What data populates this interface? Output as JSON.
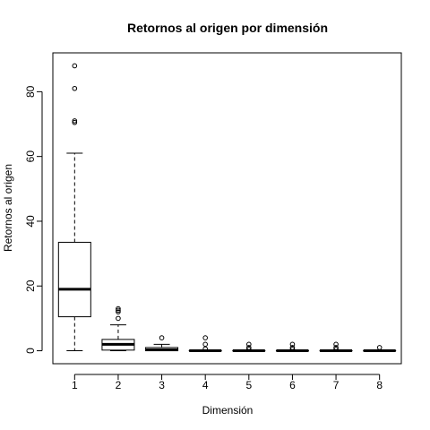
{
  "chart_data": {
    "type": "box",
    "title": "Retornos al origen por dimensión",
    "xlabel": "Dimensión",
    "ylabel": "Retornos al origen",
    "categories": [
      "1",
      "2",
      "3",
      "4",
      "5",
      "6",
      "7",
      "8"
    ],
    "ylim": [
      -4,
      92
    ],
    "yticks": [
      0,
      20,
      40,
      60,
      80
    ],
    "grid": false,
    "boxes": [
      {
        "whisker_low": 0,
        "q1": 10.5,
        "median": 19,
        "q3": 33.5,
        "whisker_high": 61,
        "outliers": [
          70.5,
          71,
          81,
          88
        ]
      },
      {
        "whisker_low": 0,
        "q1": 0.2,
        "median": 2,
        "q3": 3.5,
        "whisker_high": 8,
        "outliers": [
          10,
          12,
          12.5,
          13
        ]
      },
      {
        "whisker_low": 0,
        "q1": 0,
        "median": 0.3,
        "q3": 1,
        "whisker_high": 2,
        "outliers": [
          4
        ]
      },
      {
        "whisker_low": 0,
        "q1": 0,
        "median": 0,
        "q3": 0,
        "whisker_high": 0,
        "outliers": [
          0.6,
          2,
          4
        ]
      },
      {
        "whisker_low": 0,
        "q1": 0,
        "median": 0,
        "q3": 0,
        "whisker_high": 0,
        "outliers": [
          0.5,
          1,
          2
        ]
      },
      {
        "whisker_low": 0,
        "q1": 0,
        "median": 0,
        "q3": 0,
        "whisker_high": 0,
        "outliers": [
          0.5,
          1,
          2
        ]
      },
      {
        "whisker_low": 0,
        "q1": 0,
        "median": 0,
        "q3": 0,
        "whisker_high": 0,
        "outliers": [
          0.5,
          1,
          2
        ]
      },
      {
        "whisker_low": 0,
        "q1": 0,
        "median": 0,
        "q3": 0,
        "whisker_high": 0,
        "outliers": [
          1
        ]
      }
    ]
  }
}
